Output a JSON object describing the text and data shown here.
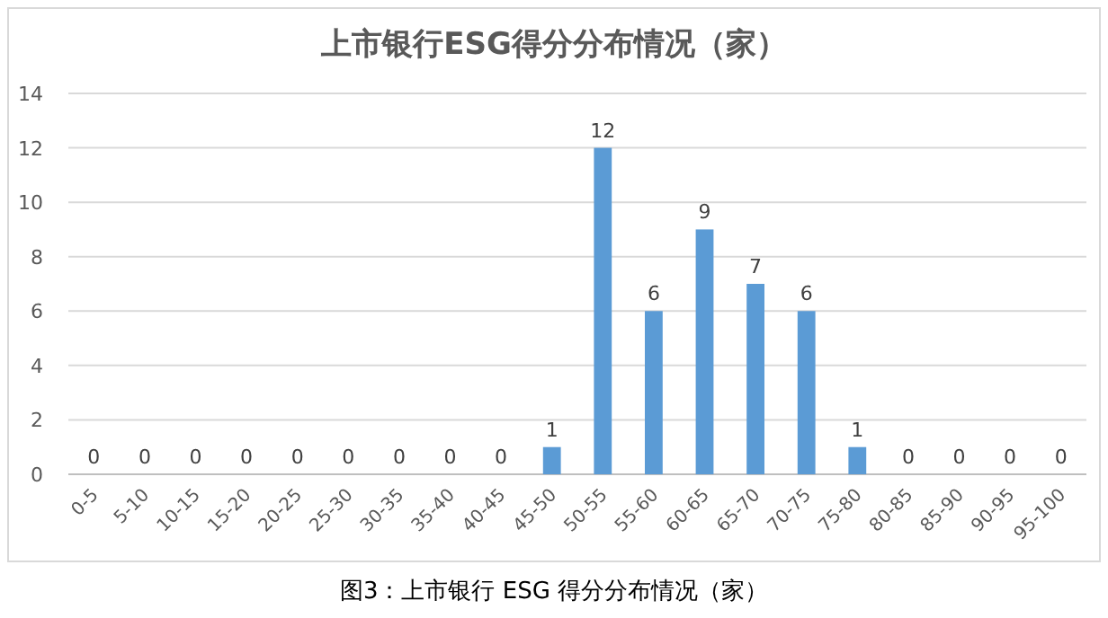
{
  "chart_data": {
    "type": "bar",
    "title": "上市银行ESG得分分布情况（家）",
    "categories": [
      "0-5",
      "5-10",
      "10-15",
      "15-20",
      "20-25",
      "25-30",
      "30-35",
      "35-40",
      "40-45",
      "45-50",
      "50-55",
      "55-60",
      "60-65",
      "65-70",
      "70-75",
      "75-80",
      "80-85",
      "85-90",
      "90-95",
      "95-100"
    ],
    "values": [
      0,
      0,
      0,
      0,
      0,
      0,
      0,
      0,
      0,
      1,
      12,
      6,
      9,
      7,
      6,
      1,
      0,
      0,
      0,
      0
    ],
    "color": "#5b9bd5",
    "ylim": [
      0,
      14
    ],
    "yticks": [
      0,
      2,
      4,
      6,
      8,
      10,
      12,
      14
    ],
    "grid": "y",
    "data_labels": true,
    "annotations": [
      "图3：上市银行 ESG 得分分布情况（家）"
    ]
  }
}
